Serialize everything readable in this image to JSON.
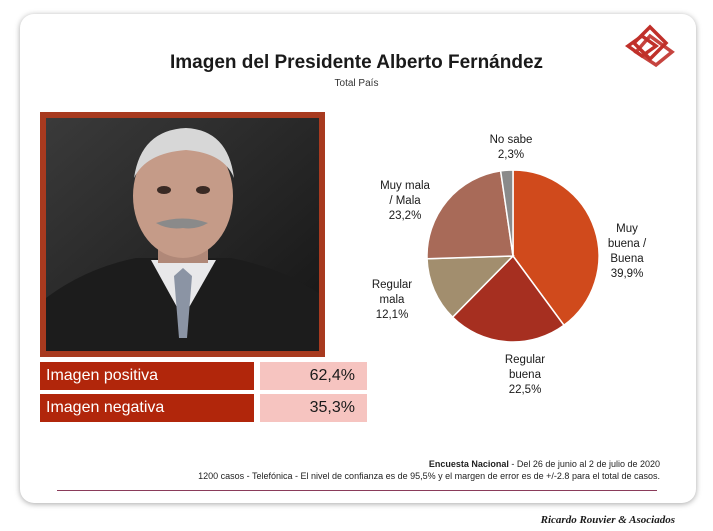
{
  "title": "Imagen del Presidente Alberto Fernández",
  "subtitle": "Total País",
  "stats": [
    {
      "label": "Imagen positiva",
      "value": "62,4%"
    },
    {
      "label": "Imagen negativa",
      "value": "35,3%"
    }
  ],
  "chart_data": {
    "type": "pie",
    "slices": [
      {
        "label_lines": [
          "Muy",
          "buena /",
          "Buena",
          "39,9%"
        ],
        "value": 39.9,
        "color": "#d04a1c"
      },
      {
        "label_lines": [
          "Regular",
          "buena",
          "22,5%"
        ],
        "value": 22.5,
        "color": "#a62f20"
      },
      {
        "label_lines": [
          "Regular",
          "mala",
          "12,1%"
        ],
        "value": 12.1,
        "color": "#a28e6e"
      },
      {
        "label_lines": [
          "Muy mala",
          "/ Mala",
          "23,2%"
        ],
        "value": 23.2,
        "color": "#a86a58"
      },
      {
        "label_lines": [
          "No sabe",
          "2,3%"
        ],
        "value": 2.3,
        "color": "#8a8a8a"
      }
    ]
  },
  "footer": {
    "survey_name": "Encuesta Nacional",
    "survey_dates": " - Del 26 de junio al 2 de julio de 2020",
    "details": "1200 casos - Telefónica  - El nivel de confianza es de 95,5% y el margen de error es de +/-2.8 para el total de casos."
  },
  "brand": "Ricardo Rouvier & Asociados",
  "colors": {
    "accent": "#b1260b",
    "value_bg": "#f6c4c0",
    "rule": "#8a3b5a"
  }
}
